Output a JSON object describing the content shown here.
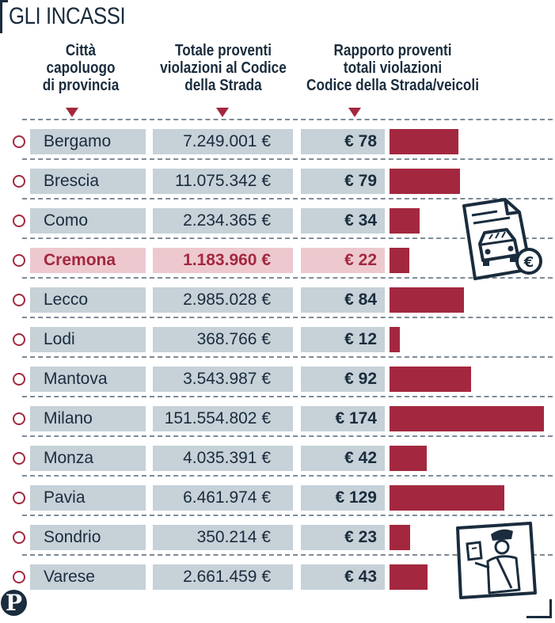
{
  "title": "GLI INCASSI",
  "headers": {
    "city": [
      "Città",
      "capoluogo",
      "di provincia"
    ],
    "total": [
      "Totale proventi",
      "violazioni al Codice",
      "della Strada"
    ],
    "ratio": [
      "Rapporto proventi",
      "totali violazioni",
      "Codice della Strada/veicoli"
    ]
  },
  "colors": {
    "accent": "#a3283f",
    "row_bg": "#c6d1d8",
    "highlight_bg": "#edc9cf",
    "text": "#1a2c3d"
  },
  "logo_letter": "P",
  "chart_data": {
    "type": "bar",
    "title": "GLI INCASSI",
    "xlabel": "Rapporto proventi totali violazioni Codice della Strada/veicoli",
    "ylabel": "Città capoluogo di provincia",
    "categories": [
      "Bergamo",
      "Brescia",
      "Como",
      "Cremona",
      "Lecco",
      "Lodi",
      "Mantova",
      "Milano",
      "Monza",
      "Pavia",
      "Sondrio",
      "Varese"
    ],
    "totals": [
      "7.249.001 €",
      "11.075.342 €",
      "2.234.365 €",
      "1.183.960 €",
      "2.985.028 €",
      "368.766 €",
      "3.543.987 €",
      "151.554.802 €",
      "4.035.391 €",
      "6.461.974 €",
      "350.214 €",
      "2.661.459 €"
    ],
    "ratio_labels": [
      "€ 78",
      "€ 79",
      "€ 34",
      "€ 22",
      "€ 84",
      "€ 12",
      "€ 92",
      "€ 174",
      "€ 42",
      "€ 129",
      "€ 23",
      "€ 43"
    ],
    "values": [
      78,
      79,
      34,
      22,
      84,
      12,
      92,
      174,
      42,
      129,
      23,
      43
    ],
    "highlight": "Cremona",
    "xlim": [
      0,
      174
    ]
  }
}
